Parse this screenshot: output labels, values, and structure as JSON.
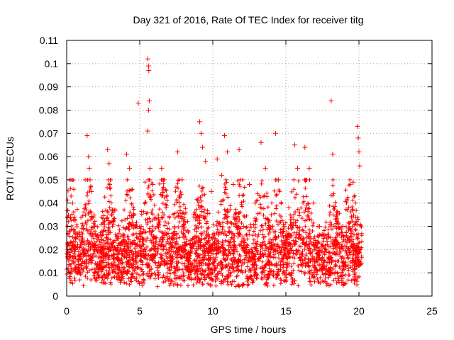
{
  "chart_data": {
    "type": "scatter",
    "title": "Day 321 of 2016, Rate Of TEC Index for receiver titg",
    "xlabel": "GPS time / hours",
    "ylabel": "ROTI / TECUs",
    "xlim": [
      0,
      25
    ],
    "ylim": [
      0,
      0.11
    ],
    "x_ticks": [
      0,
      5,
      10,
      15,
      20,
      25
    ],
    "x_tick_labels": [
      "0",
      "5",
      "10",
      "15",
      "20",
      "25"
    ],
    "y_ticks": [
      0,
      0.01,
      0.02,
      0.03,
      0.04,
      0.05,
      0.06,
      0.07,
      0.08,
      0.09,
      0.1,
      0.11
    ],
    "y_tick_labels": [
      "0",
      "0.01",
      "0.02",
      "0.03",
      "0.04",
      "0.05",
      "0.06",
      "0.07",
      "0.08",
      "0.09",
      "0.1",
      "0.11"
    ],
    "grid": true,
    "marker": "+",
    "marker_color": "#ff0000",
    "series": [
      {
        "marker": "+",
        "color": "#ff0000",
        "points": [
          [
            0.1,
            0.012
          ],
          [
            0.2,
            0.028
          ],
          [
            0.3,
            0.043
          ],
          [
            0.4,
            0.04
          ],
          [
            0.6,
            0.02
          ],
          [
            0.8,
            0.015
          ],
          [
            1.0,
            0.013
          ],
          [
            1.2,
            0.018
          ],
          [
            1.4,
            0.069
          ],
          [
            1.5,
            0.06
          ],
          [
            1.55,
            0.055
          ],
          [
            1.6,
            0.05
          ],
          [
            1.7,
            0.045
          ],
          [
            1.9,
            0.03
          ],
          [
            2.2,
            0.02
          ],
          [
            2.5,
            0.018
          ],
          [
            2.8,
            0.063
          ],
          [
            2.9,
            0.057
          ],
          [
            3.1,
            0.032
          ],
          [
            3.4,
            0.02
          ],
          [
            3.8,
            0.018
          ],
          [
            4.1,
            0.061
          ],
          [
            4.3,
            0.055
          ],
          [
            4.6,
            0.035
          ],
          [
            4.9,
            0.083
          ],
          [
            5.1,
            0.03
          ],
          [
            5.3,
            0.02
          ],
          [
            5.55,
            0.102
          ],
          [
            5.6,
            0.099
          ],
          [
            5.62,
            0.097
          ],
          [
            5.65,
            0.084
          ],
          [
            5.6,
            0.08
          ],
          [
            5.55,
            0.071
          ],
          [
            5.7,
            0.055
          ],
          [
            5.9,
            0.048
          ],
          [
            6.2,
            0.03
          ],
          [
            6.5,
            0.055
          ],
          [
            6.8,
            0.038
          ],
          [
            7.2,
            0.025
          ],
          [
            7.6,
            0.062
          ],
          [
            7.9,
            0.05
          ],
          [
            8.3,
            0.028
          ],
          [
            8.7,
            0.035
          ],
          [
            9.1,
            0.075
          ],
          [
            9.2,
            0.07
          ],
          [
            9.3,
            0.064
          ],
          [
            9.5,
            0.058
          ],
          [
            9.9,
            0.045
          ],
          [
            10.3,
            0.059
          ],
          [
            10.6,
            0.052
          ],
          [
            10.8,
            0.069
          ],
          [
            11.0,
            0.062
          ],
          [
            11.4,
            0.048
          ],
          [
            11.8,
            0.063
          ],
          [
            12.1,
            0.03
          ],
          [
            12.5,
            0.048
          ],
          [
            12.9,
            0.04
          ],
          [
            13.3,
            0.066
          ],
          [
            13.6,
            0.055
          ],
          [
            14.0,
            0.035
          ],
          [
            14.3,
            0.07
          ],
          [
            14.5,
            0.05
          ],
          [
            14.9,
            0.03
          ],
          [
            15.2,
            0.038
          ],
          [
            15.6,
            0.065
          ],
          [
            15.8,
            0.055
          ],
          [
            16.3,
            0.064
          ],
          [
            16.6,
            0.055
          ],
          [
            16.9,
            0.04
          ],
          [
            17.3,
            0.03
          ],
          [
            17.8,
            0.025
          ],
          [
            18.1,
            0.084
          ],
          [
            18.2,
            0.061
          ],
          [
            18.5,
            0.035
          ],
          [
            18.9,
            0.03
          ],
          [
            19.3,
            0.038
          ],
          [
            19.6,
            0.049
          ],
          [
            19.9,
            0.073
          ],
          [
            19.95,
            0.068
          ],
          [
            20.0,
            0.062
          ],
          [
            20.05,
            0.056
          ],
          [
            20.1,
            0.02
          ]
        ]
      }
    ]
  }
}
